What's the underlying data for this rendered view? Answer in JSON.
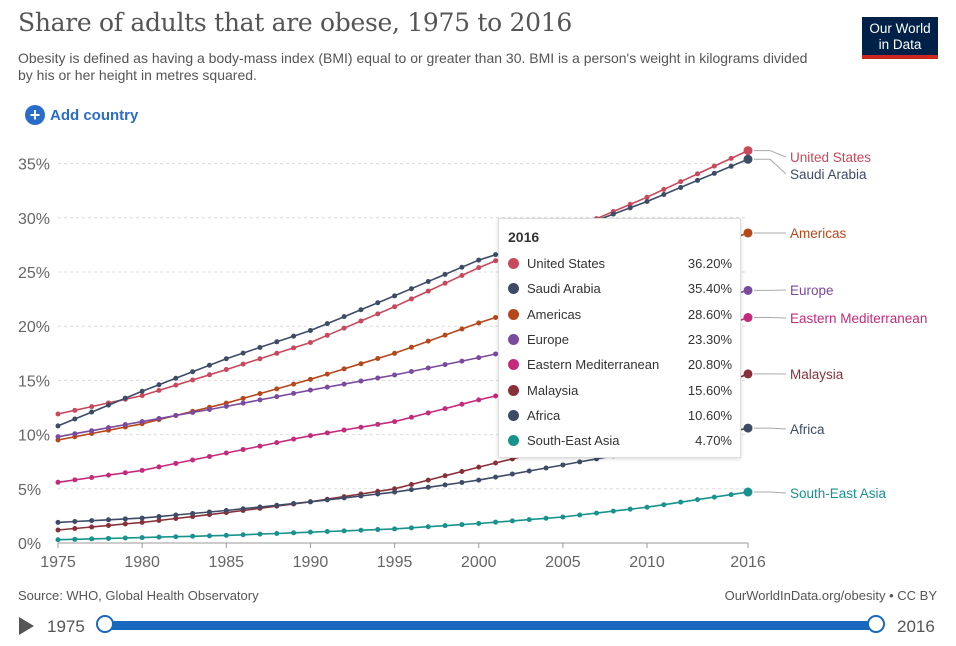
{
  "title": "Share of adults that are obese, 1975 to 2016",
  "subtitle": "Obesity is defined as having a body-mass index (BMI) equal to or greater than 30. BMI is a person's weight in kilograms divided by his or her height in metres squared.",
  "logo": {
    "line1": "Our World",
    "line2": "in Data"
  },
  "add_country": {
    "icon": "plus-circle-icon",
    "label": "Add country"
  },
  "source": "Source: WHO, Global Health Observatory",
  "credit": "OurWorldInData.org/obesity • CC BY",
  "timeline": {
    "start": "1975",
    "end": "2016",
    "play_icon": "play-icon"
  },
  "tooltip": {
    "year": "2016",
    "rows": [
      {
        "name": "United States",
        "value": "36.20%",
        "color": "#c9485b"
      },
      {
        "name": "Saudi Arabia",
        "value": "35.40%",
        "color": "#3d4b66"
      },
      {
        "name": "Americas",
        "value": "28.60%",
        "color": "#b6471a"
      },
      {
        "name": "Europe",
        "value": "23.30%",
        "color": "#7a4a9e"
      },
      {
        "name": "Eastern Mediterranean",
        "value": "20.80%",
        "color": "#c42a7b"
      },
      {
        "name": "Malaysia",
        "value": "15.60%",
        "color": "#883039"
      },
      {
        "name": "Africa",
        "value": "10.60%",
        "color": "#3d4b66"
      },
      {
        "name": "South-East Asia",
        "value": "4.70%",
        "color": "#18928c"
      }
    ]
  },
  "chart_data": {
    "type": "line",
    "title": "Share of adults that are obese, 1975 to 2016",
    "xlim": [
      1975,
      2016
    ],
    "ylim": [
      0,
      37
    ],
    "x_ticks": [
      "1975",
      "1980",
      "1985",
      "1990",
      "1995",
      "2000",
      "2005",
      "2010",
      "2016"
    ],
    "y_ticks": [
      "0%",
      "5%",
      "10%",
      "15%",
      "20%",
      "25%",
      "30%",
      "35%"
    ],
    "grid": "horizontal dashed",
    "legend": "right, labels at line ends",
    "series": [
      {
        "name": "United States",
        "color": "#c9485b",
        "points": [
          [
            1975,
            11.9
          ],
          [
            1980,
            13.6
          ],
          [
            1985,
            16.0
          ],
          [
            1990,
            18.5
          ],
          [
            1995,
            21.8
          ],
          [
            2000,
            25.4
          ],
          [
            2005,
            28.6
          ],
          [
            2010,
            31.9
          ],
          [
            2016,
            36.2
          ]
        ]
      },
      {
        "name": "Saudi Arabia",
        "color": "#3d4b66",
        "points": [
          [
            1975,
            10.8
          ],
          [
            1980,
            14.0
          ],
          [
            1985,
            17.0
          ],
          [
            1990,
            19.6
          ],
          [
            1995,
            22.8
          ],
          [
            2000,
            26.1
          ],
          [
            2005,
            28.6
          ],
          [
            2010,
            31.5
          ],
          [
            2016,
            35.4
          ]
        ]
      },
      {
        "name": "Americas",
        "color": "#b6471a",
        "points": [
          [
            1975,
            9.5
          ],
          [
            1980,
            11.0
          ],
          [
            1985,
            12.9
          ],
          [
            1990,
            15.1
          ],
          [
            1995,
            17.5
          ],
          [
            2000,
            20.3
          ],
          [
            2005,
            22.8
          ],
          [
            2010,
            25.4
          ],
          [
            2016,
            28.6
          ]
        ]
      },
      {
        "name": "Europe",
        "color": "#7a4a9e",
        "points": [
          [
            1975,
            9.8
          ],
          [
            1980,
            11.2
          ],
          [
            1985,
            12.6
          ],
          [
            1990,
            14.1
          ],
          [
            1995,
            15.5
          ],
          [
            2000,
            17.1
          ],
          [
            2005,
            18.8
          ],
          [
            2010,
            20.8
          ],
          [
            2016,
            23.3
          ]
        ]
      },
      {
        "name": "Eastern Mediterranean",
        "color": "#c42a7b",
        "points": [
          [
            1975,
            5.6
          ],
          [
            1980,
            6.7
          ],
          [
            1985,
            8.3
          ],
          [
            1990,
            9.9
          ],
          [
            1995,
            11.2
          ],
          [
            2000,
            13.2
          ],
          [
            2005,
            15.0
          ],
          [
            2010,
            17.5
          ],
          [
            2016,
            20.8
          ]
        ]
      },
      {
        "name": "Malaysia",
        "color": "#883039",
        "points": [
          [
            1975,
            1.2
          ],
          [
            1980,
            1.9
          ],
          [
            1985,
            2.8
          ],
          [
            1990,
            3.8
          ],
          [
            1995,
            5.0
          ],
          [
            2000,
            7.0
          ],
          [
            2005,
            8.9
          ],
          [
            2010,
            11.8
          ],
          [
            2016,
            15.6
          ]
        ]
      },
      {
        "name": "Africa",
        "color": "#3d4b66",
        "points": [
          [
            1975,
            1.9
          ],
          [
            1980,
            2.3
          ],
          [
            1985,
            3.0
          ],
          [
            1990,
            3.8
          ],
          [
            1995,
            4.7
          ],
          [
            2000,
            5.8
          ],
          [
            2005,
            7.2
          ],
          [
            2010,
            8.6
          ],
          [
            2016,
            10.6
          ]
        ]
      },
      {
        "name": "South-East Asia",
        "color": "#18928c",
        "points": [
          [
            1975,
            0.3
          ],
          [
            1980,
            0.5
          ],
          [
            1985,
            0.7
          ],
          [
            1990,
            1.0
          ],
          [
            1995,
            1.3
          ],
          [
            2000,
            1.8
          ],
          [
            2005,
            2.4
          ],
          [
            2010,
            3.3
          ],
          [
            2016,
            4.7
          ]
        ]
      }
    ]
  }
}
